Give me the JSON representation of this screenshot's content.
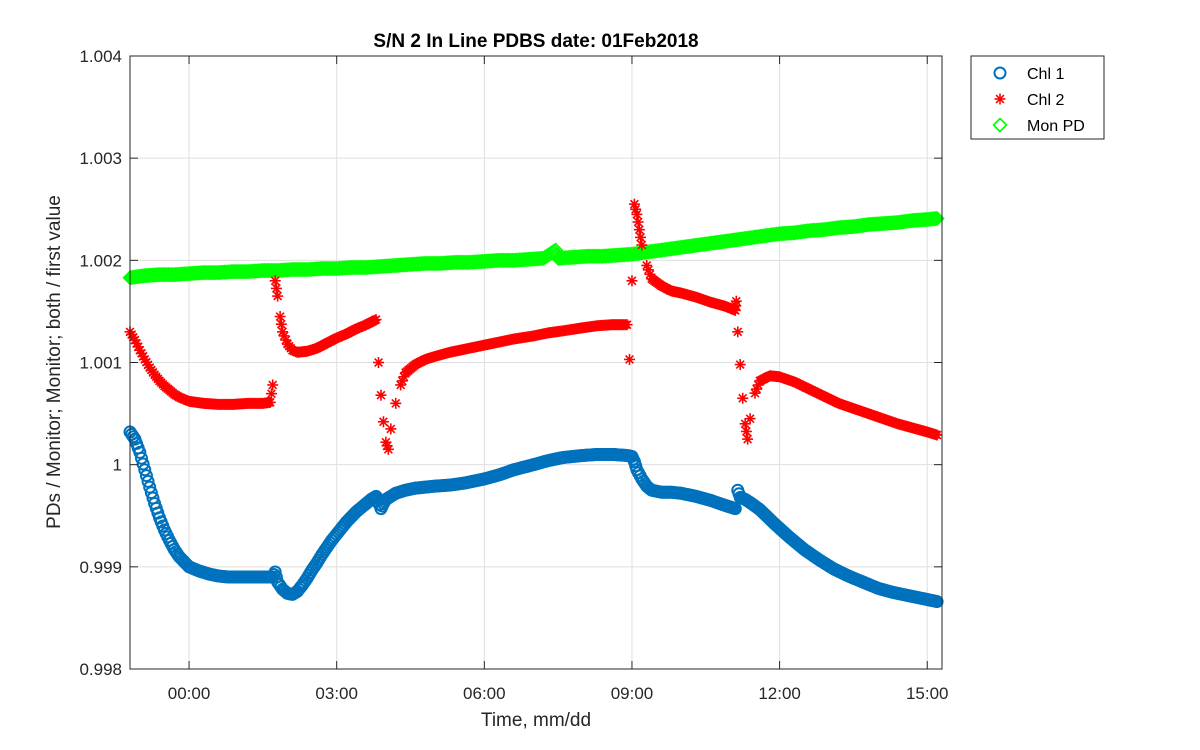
{
  "chart_data": {
    "type": "scatter",
    "title": "S/N 2 In Line PDBS date: 01Feb2018",
    "xlabel": "Time, mm/dd",
    "ylabel": "PDs / Monitor; Monitor; both / first value",
    "xlim": [
      -1.2,
      15.3
    ],
    "ylim": [
      0.998,
      1.004
    ],
    "x_ticks": [
      {
        "value": 0,
        "label": "00:00"
      },
      {
        "value": 3,
        "label": "03:00"
      },
      {
        "value": 6,
        "label": "06:00"
      },
      {
        "value": 9,
        "label": "09:00"
      },
      {
        "value": 12,
        "label": "12:00"
      },
      {
        "value": 15,
        "label": "15:00"
      }
    ],
    "y_ticks": [
      {
        "value": 0.998,
        "label": "0.998"
      },
      {
        "value": 0.999,
        "label": "0.999"
      },
      {
        "value": 1.0,
        "label": "1"
      },
      {
        "value": 1.001,
        "label": "1.001"
      },
      {
        "value": 1.002,
        "label": "1.002"
      },
      {
        "value": 1.003,
        "label": "1.003"
      },
      {
        "value": 1.004,
        "label": "1.004"
      }
    ],
    "grid": true,
    "legend_position": "outside-top-right",
    "series": [
      {
        "name": "Chl 1",
        "marker": "circle",
        "color": "#0072BD",
        "points": [
          [
            -1.2,
            1.00032
          ],
          [
            -1.1,
            1.00025
          ],
          [
            -1.0,
            1.00012
          ],
          [
            -0.9,
            0.99995
          ],
          [
            -0.8,
            0.99978
          ],
          [
            -0.7,
            0.99962
          ],
          [
            -0.6,
            0.99948
          ],
          [
            -0.5,
            0.99936
          ],
          [
            -0.4,
            0.99926
          ],
          [
            -0.3,
            0.99917
          ],
          [
            -0.2,
            0.9991
          ],
          [
            -0.1,
            0.99905
          ],
          [
            0.0,
            0.999
          ],
          [
            0.2,
            0.99896
          ],
          [
            0.4,
            0.99893
          ],
          [
            0.6,
            0.99891
          ],
          [
            0.8,
            0.9989
          ],
          [
            1.0,
            0.9989
          ],
          [
            1.2,
            0.9989
          ],
          [
            1.4,
            0.9989
          ],
          [
            1.6,
            0.9989
          ],
          [
            1.7,
            0.9989
          ],
          [
            1.75,
            0.99895
          ],
          [
            1.8,
            0.99885
          ],
          [
            1.9,
            0.99878
          ],
          [
            2.0,
            0.99874
          ],
          [
            2.1,
            0.99873
          ],
          [
            2.2,
            0.99876
          ],
          [
            2.3,
            0.99882
          ],
          [
            2.4,
            0.99889
          ],
          [
            2.5,
            0.99897
          ],
          [
            2.6,
            0.99904
          ],
          [
            2.7,
            0.99912
          ],
          [
            2.8,
            0.99919
          ],
          [
            2.9,
            0.99926
          ],
          [
            3.0,
            0.99932
          ],
          [
            3.1,
            0.99938
          ],
          [
            3.2,
            0.99944
          ],
          [
            3.3,
            0.99949
          ],
          [
            3.4,
            0.99954
          ],
          [
            3.5,
            0.99958
          ],
          [
            3.6,
            0.99962
          ],
          [
            3.7,
            0.99966
          ],
          [
            3.8,
            0.99969
          ],
          [
            3.9,
            0.99957
          ],
          [
            3.95,
            0.99962
          ],
          [
            4.0,
            0.99966
          ],
          [
            4.1,
            0.99969
          ],
          [
            4.2,
            0.99972
          ],
          [
            4.4,
            0.99975
          ],
          [
            4.6,
            0.99977
          ],
          [
            4.8,
            0.99978
          ],
          [
            5.0,
            0.99979
          ],
          [
            5.3,
            0.9998
          ],
          [
            5.6,
            0.99982
          ],
          [
            6.0,
            0.99986
          ],
          [
            6.3,
            0.9999
          ],
          [
            6.6,
            0.99995
          ],
          [
            7.0,
            1.0
          ],
          [
            7.3,
            1.00004
          ],
          [
            7.6,
            1.00007
          ],
          [
            8.0,
            1.00009
          ],
          [
            8.3,
            1.0001
          ],
          [
            8.6,
            1.0001
          ],
          [
            8.9,
            1.00009
          ],
          [
            9.0,
            1.00008
          ],
          [
            9.05,
            1.00003
          ],
          [
            9.1,
            0.99995
          ],
          [
            9.2,
            0.99986
          ],
          [
            9.3,
            0.99979
          ],
          [
            9.4,
            0.99975
          ],
          [
            9.6,
            0.99973
          ],
          [
            9.8,
            0.99973
          ],
          [
            10.0,
            0.99972
          ],
          [
            10.3,
            0.99969
          ],
          [
            10.6,
            0.99965
          ],
          [
            10.9,
            0.9996
          ],
          [
            11.1,
            0.99957
          ],
          [
            11.15,
            0.99975
          ],
          [
            11.2,
            0.99968
          ],
          [
            11.3,
            0.99966
          ],
          [
            11.4,
            0.99963
          ],
          [
            11.6,
            0.99956
          ],
          [
            11.9,
            0.99942
          ],
          [
            12.2,
            0.99929
          ],
          [
            12.5,
            0.99917
          ],
          [
            12.8,
            0.99907
          ],
          [
            13.1,
            0.99898
          ],
          [
            13.4,
            0.99891
          ],
          [
            13.7,
            0.99885
          ],
          [
            14.0,
            0.99879
          ],
          [
            14.3,
            0.99875
          ],
          [
            14.6,
            0.99872
          ],
          [
            14.9,
            0.99869
          ],
          [
            15.2,
            0.99866
          ]
        ]
      },
      {
        "name": "Chl 2",
        "marker": "asterisk",
        "color": "#FF0000",
        "points": [
          [
            -1.2,
            1.0013
          ],
          [
            -1.1,
            1.00122
          ],
          [
            -1.0,
            1.00112
          ],
          [
            -0.9,
            1.00103
          ],
          [
            -0.8,
            1.00095
          ],
          [
            -0.7,
            1.00088
          ],
          [
            -0.6,
            1.00082
          ],
          [
            -0.5,
            1.00077
          ],
          [
            -0.4,
            1.00073
          ],
          [
            -0.3,
            1.00069
          ],
          [
            -0.2,
            1.00066
          ],
          [
            -0.1,
            1.00064
          ],
          [
            0.0,
            1.00062
          ],
          [
            0.3,
            1.0006
          ],
          [
            0.6,
            1.00059
          ],
          [
            0.9,
            1.00059
          ],
          [
            1.2,
            1.0006
          ],
          [
            1.5,
            1.0006
          ],
          [
            1.65,
            1.00061
          ],
          [
            1.7,
            1.00078
          ],
          [
            1.75,
            1.0018
          ],
          [
            1.8,
            1.00165
          ],
          [
            1.85,
            1.00145
          ],
          [
            1.9,
            1.0013
          ],
          [
            2.0,
            1.00118
          ],
          [
            2.1,
            1.00112
          ],
          [
            2.2,
            1.0011
          ],
          [
            2.4,
            1.00111
          ],
          [
            2.6,
            1.00114
          ],
          [
            2.8,
            1.00119
          ],
          [
            3.0,
            1.00124
          ],
          [
            3.2,
            1.00128
          ],
          [
            3.4,
            1.00133
          ],
          [
            3.6,
            1.00137
          ],
          [
            3.8,
            1.00142
          ],
          [
            3.85,
            1.001
          ],
          [
            3.9,
            1.00068
          ],
          [
            3.95,
            1.00042
          ],
          [
            4.0,
            1.00022
          ],
          [
            4.05,
            1.00015
          ],
          [
            4.1,
            1.00035
          ],
          [
            4.2,
            1.0006
          ],
          [
            4.3,
            1.00078
          ],
          [
            4.4,
            1.0009
          ],
          [
            4.6,
            1.00098
          ],
          [
            4.8,
            1.00103
          ],
          [
            5.0,
            1.00106
          ],
          [
            5.3,
            1.0011
          ],
          [
            5.6,
            1.00113
          ],
          [
            6.0,
            1.00117
          ],
          [
            6.3,
            1.0012
          ],
          [
            6.6,
            1.00123
          ],
          [
            7.0,
            1.00126
          ],
          [
            7.3,
            1.00129
          ],
          [
            7.6,
            1.00131
          ],
          [
            8.0,
            1.00134
          ],
          [
            8.3,
            1.00136
          ],
          [
            8.6,
            1.00137
          ],
          [
            8.9,
            1.00137
          ],
          [
            8.95,
            1.00103
          ],
          [
            9.0,
            1.0018
          ],
          [
            9.05,
            1.00255
          ],
          [
            9.1,
            1.00245
          ],
          [
            9.15,
            1.0023
          ],
          [
            9.2,
            1.00215
          ],
          [
            9.3,
            1.00195
          ],
          [
            9.4,
            1.00182
          ],
          [
            9.6,
            1.00175
          ],
          [
            9.8,
            1.0017
          ],
          [
            10.0,
            1.00168
          ],
          [
            10.3,
            1.00164
          ],
          [
            10.6,
            1.00159
          ],
          [
            10.9,
            1.00155
          ],
          [
            11.1,
            1.00151
          ],
          [
            11.12,
            1.0016
          ],
          [
            11.15,
            1.0013
          ],
          [
            11.2,
            1.00098
          ],
          [
            11.25,
            1.00065
          ],
          [
            11.3,
            1.0004
          ],
          [
            11.35,
            1.00025
          ],
          [
            11.4,
            1.00045
          ],
          [
            11.5,
            1.0007
          ],
          [
            11.6,
            1.00082
          ],
          [
            11.8,
            1.00087
          ],
          [
            12.0,
            1.00086
          ],
          [
            12.3,
            1.00081
          ],
          [
            12.6,
            1.00074
          ],
          [
            12.9,
            1.00067
          ],
          [
            13.2,
            1.0006
          ],
          [
            13.5,
            1.00055
          ],
          [
            13.8,
            1.0005
          ],
          [
            14.1,
            1.00045
          ],
          [
            14.4,
            1.0004
          ],
          [
            14.7,
            1.00036
          ],
          [
            15.0,
            1.00032
          ],
          [
            15.2,
            1.00029
          ]
        ]
      },
      {
        "name": "Mon PD",
        "marker": "diamond",
        "color": "#00FF00",
        "points": [
          [
            -1.2,
            1.00183
          ],
          [
            -0.9,
            1.00185
          ],
          [
            -0.6,
            1.00186
          ],
          [
            -0.3,
            1.00186
          ],
          [
            0.0,
            1.00187
          ],
          [
            0.3,
            1.00188
          ],
          [
            0.6,
            1.00188
          ],
          [
            0.9,
            1.00189
          ],
          [
            1.2,
            1.00189
          ],
          [
            1.5,
            1.0019
          ],
          [
            1.8,
            1.0019
          ],
          [
            2.1,
            1.00191
          ],
          [
            2.4,
            1.00191
          ],
          [
            2.7,
            1.00192
          ],
          [
            3.0,
            1.00192
          ],
          [
            3.3,
            1.00193
          ],
          [
            3.6,
            1.00193
          ],
          [
            3.9,
            1.00194
          ],
          [
            4.2,
            1.00195
          ],
          [
            4.5,
            1.00196
          ],
          [
            4.8,
            1.00197
          ],
          [
            5.1,
            1.00197
          ],
          [
            5.4,
            1.00198
          ],
          [
            5.7,
            1.00198
          ],
          [
            6.0,
            1.00199
          ],
          [
            6.3,
            1.002
          ],
          [
            6.6,
            1.002
          ],
          [
            6.9,
            1.00201
          ],
          [
            7.2,
            1.00202
          ],
          [
            7.45,
            1.0021
          ],
          [
            7.5,
            1.00202
          ],
          [
            7.8,
            1.00203
          ],
          [
            8.1,
            1.00204
          ],
          [
            8.4,
            1.00204
          ],
          [
            8.7,
            1.00205
          ],
          [
            9.0,
            1.00206
          ],
          [
            9.3,
            1.00208
          ],
          [
            9.6,
            1.0021
          ],
          [
            9.9,
            1.00212
          ],
          [
            10.2,
            1.00214
          ],
          [
            10.5,
            1.00216
          ],
          [
            10.8,
            1.00218
          ],
          [
            11.1,
            1.0022
          ],
          [
            11.4,
            1.00222
          ],
          [
            11.7,
            1.00224
          ],
          [
            12.0,
            1.00226
          ],
          [
            12.3,
            1.00227
          ],
          [
            12.6,
            1.00229
          ],
          [
            12.9,
            1.0023
          ],
          [
            13.2,
            1.00232
          ],
          [
            13.5,
            1.00233
          ],
          [
            13.8,
            1.00235
          ],
          [
            14.1,
            1.00236
          ],
          [
            14.4,
            1.00237
          ],
          [
            14.7,
            1.00239
          ],
          [
            15.0,
            1.0024
          ],
          [
            15.2,
            1.00241
          ]
        ]
      }
    ]
  }
}
